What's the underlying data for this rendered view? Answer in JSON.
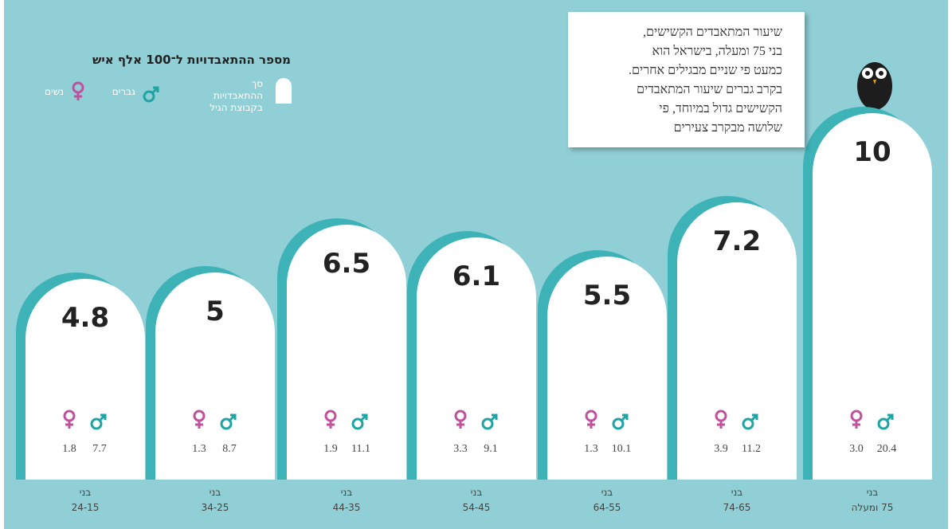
{
  "chart_data": {
    "type": "bar",
    "title": "מספר ההתאבדויות ל־100 אלף איש",
    "legend_total": "סך ההתאבדויות בקבוצת הגיל",
    "categories": [
      [
        "בני",
        "24-15"
      ],
      [
        "בני",
        "34-25"
      ],
      [
        "בני",
        "44-35"
      ],
      [
        "בני",
        "54-45"
      ],
      [
        "בני",
        "64-55"
      ],
      [
        "בני",
        "74-65"
      ],
      [
        "בני",
        "75 ומעלה"
      ]
    ],
    "values": [
      4.8,
      5,
      6.5,
      6.1,
      5.5,
      7.2,
      10
    ],
    "color": "#ffffff",
    "series": [
      {
        "name": "גברים",
        "color": "#1fa3a3",
        "values": [
          7.7,
          8.7,
          11.1,
          9.1,
          10.1,
          11.2,
          20.4
        ]
      },
      {
        "name": "נשים",
        "color": "#c0519c",
        "values": [
          1.8,
          1.3,
          1.9,
          3.3,
          1.3,
          3.9,
          3.0
        ],
        "value_labels": [
          "1.8",
          "1.3",
          "1.9",
          "3.3",
          "1.3",
          "3.9",
          "3.0"
        ]
      }
    ],
    "annotation": [
      "שיעור המתאבדים הקשישים,",
      "בני 75 ומעלה, בישראל הוא",
      "כמעט פי שניים מבגילים אחרים.",
      "בקרב גברים שיעור המתאבדים",
      "הקשישים גדול במיוחד, פי",
      "שלושה מבקרב צעירים"
    ]
  }
}
